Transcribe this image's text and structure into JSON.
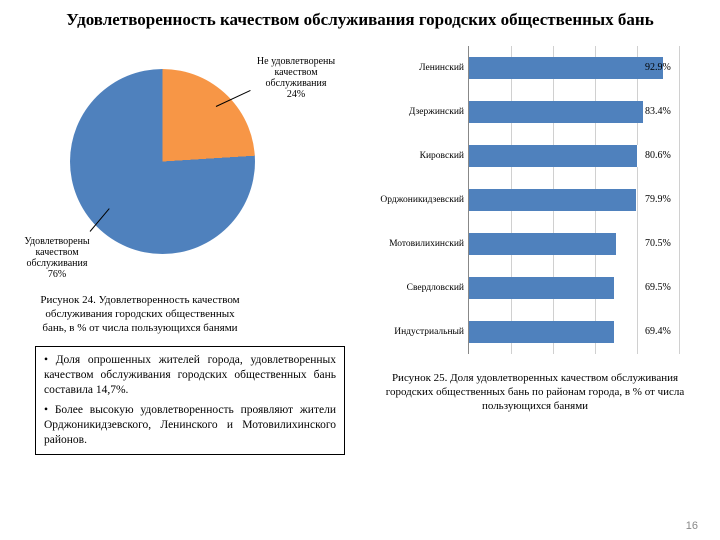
{
  "title": "Удовлетворенность качеством обслуживания городских общественных бань",
  "pie": {
    "type": "pie",
    "slices": [
      {
        "label": "Удовлетворены качеством обслуживания",
        "pct_text": "76%",
        "value": 76,
        "color": "#4f81bd"
      },
      {
        "label": "Не удовлетворены качеством обслуживания",
        "pct_text": "24%",
        "value": 24,
        "color": "#f79646"
      }
    ],
    "background": "#ffffff"
  },
  "caption_left": "Рисунок 24. Удовлетворенность качеством обслуживания городских общественных бань, в % от числа пользующихся банями",
  "bullets": {
    "p1": "• Доля опрошенных жителей города, удовлетворенных качеством обслуживания городских общественных бань составила 14,7%.",
    "p2": "• Более высокую удовлетворенность проявляют жители Орджоникидзевского, Ленинского и Мотовилихинского районов."
  },
  "bars": {
    "type": "bar",
    "orientation": "horizontal",
    "xlim": [
      0,
      100
    ],
    "grid_step": 20,
    "bar_color": "#4f81bd",
    "grid_color": "#d0d0d0",
    "label_fontsize": 9.5,
    "value_fontsize": 10,
    "items": [
      {
        "label": "Ленинский",
        "value": 92.9,
        "text": "92.9%"
      },
      {
        "label": "Дзержинский",
        "value": 83.4,
        "text": "83.4%"
      },
      {
        "label": "Кировский",
        "value": 80.6,
        "text": "80.6%"
      },
      {
        "label": "Орджоникидзевский",
        "value": 79.9,
        "text": "79.9%"
      },
      {
        "label": "Мотовилихинский",
        "value": 70.5,
        "text": "70.5%"
      },
      {
        "label": "Свердловский",
        "value": 69.5,
        "text": "69.5%"
      },
      {
        "label": "Индустриальный",
        "value": 69.4,
        "text": "69.4%"
      }
    ]
  },
  "caption_right": "Рисунок 25. Доля удовлетворенных качеством обслуживания городских общественных бань по районам города, в % от числа пользующихся банями",
  "page_number": "16"
}
